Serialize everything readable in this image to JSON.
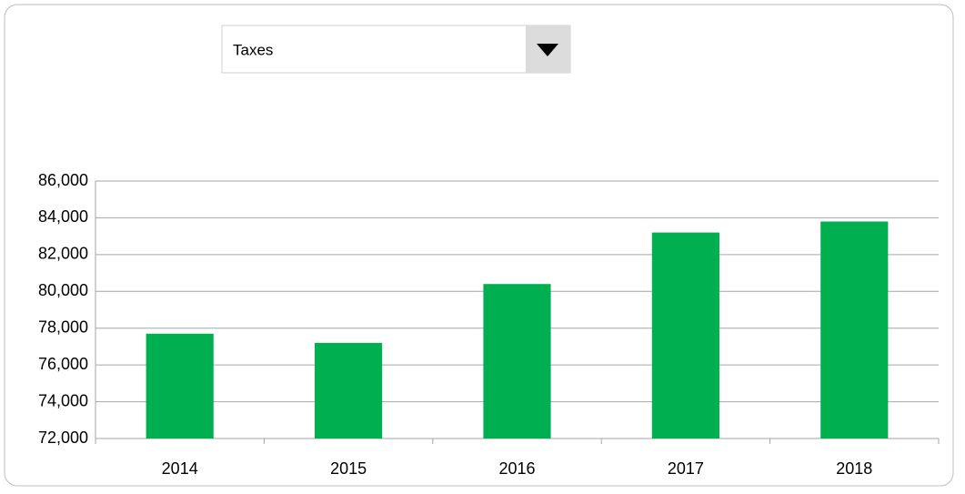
{
  "dropdown": {
    "value": "Taxes"
  },
  "chart_data": {
    "type": "bar",
    "categories": [
      "2014",
      "2015",
      "2016",
      "2017",
      "2018"
    ],
    "values": [
      77700,
      77200,
      80400,
      83200,
      83800
    ],
    "color": "#00b050",
    "ylim": [
      72000,
      86000
    ],
    "yticks": [
      {
        "value": 72000,
        "label": "72,000"
      },
      {
        "value": 74000,
        "label": "74,000"
      },
      {
        "value": 76000,
        "label": "76,000"
      },
      {
        "value": 78000,
        "label": "78,000"
      },
      {
        "value": 80000,
        "label": "80,000"
      },
      {
        "value": 82000,
        "label": "82,000"
      },
      {
        "value": 84000,
        "label": "84,000"
      },
      {
        "value": 86000,
        "label": "86,000"
      }
    ],
    "grid": true
  }
}
